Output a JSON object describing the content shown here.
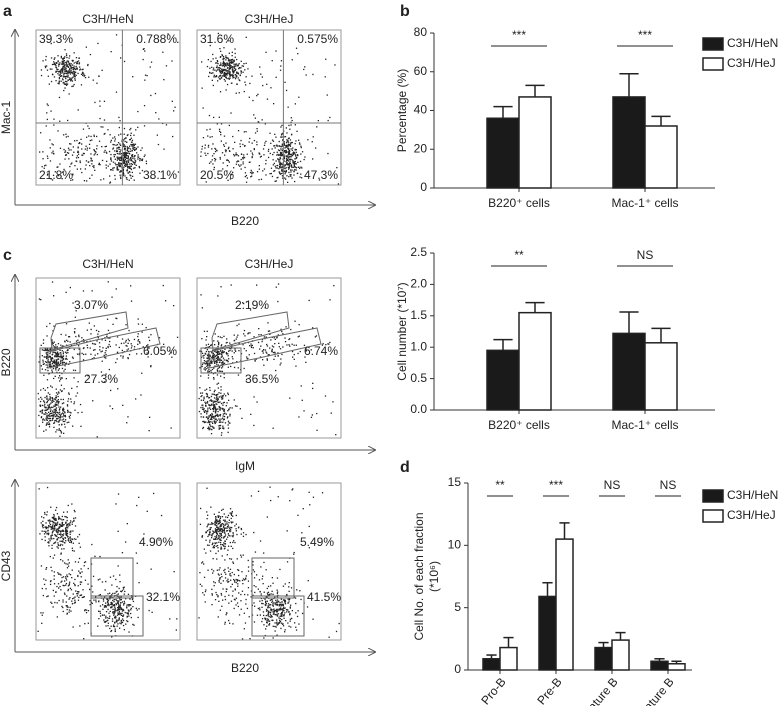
{
  "panel_labels": [
    "a",
    "b",
    "c",
    "d"
  ],
  "flow": {
    "a": {
      "titles": [
        "C3H/HeN",
        "C3H/HeJ"
      ],
      "x_label": "B220",
      "y_label": "Mac-1",
      "quadrants": [
        [
          "39.3%",
          "0.788%",
          "21.8%",
          "38.1%"
        ],
        [
          "31.6%",
          "0.575%",
          "20.5%",
          "47.3%"
        ]
      ]
    },
    "c_top": {
      "titles": [
        "C3H/HeN",
        "C3H/HeJ"
      ],
      "x_label": "IgM",
      "y_label": "B220",
      "gates": [
        [
          "3.07%",
          "6.05%",
          "27.3%"
        ],
        [
          "2.19%",
          "6.74%",
          "36.5%"
        ]
      ]
    },
    "c_bottom": {
      "x_label": "B220",
      "y_label": "CD43",
      "gates": [
        [
          "4.90%",
          "32.1%"
        ],
        [
          "5.49%",
          "41.5%"
        ]
      ]
    }
  },
  "chart_data": [
    {
      "type": "bar",
      "y_label": "Percentage (%)",
      "categories": [
        "B220⁺ cells",
        "Mac-1⁺ cells"
      ],
      "series": [
        {
          "name": "C3H/HeN",
          "color": "#1a1a1a",
          "values": [
            36,
            47
          ],
          "errors": [
            6,
            12
          ]
        },
        {
          "name": "C3H/HeJ",
          "color": "#ffffff",
          "values": [
            47,
            32
          ],
          "errors": [
            6,
            5
          ]
        }
      ],
      "significance": [
        "***",
        "***"
      ],
      "ylim": [
        0,
        80
      ],
      "yticks": [
        0,
        20,
        40,
        60,
        80
      ],
      "legend": "upper right"
    },
    {
      "type": "bar",
      "y_label": "Cell number (*10⁷)",
      "categories": [
        "B220⁺ cells",
        "Mac-1⁺ cells"
      ],
      "series": [
        {
          "name": "C3H/HeN",
          "color": "#1a1a1a",
          "values": [
            0.95,
            1.22
          ],
          "errors": [
            0.17,
            0.34
          ]
        },
        {
          "name": "C3H/HeJ",
          "color": "#ffffff",
          "values": [
            1.55,
            1.07
          ],
          "errors": [
            0.16,
            0.23
          ]
        }
      ],
      "significance": [
        "**",
        "NS"
      ],
      "ylim": [
        0,
        2.5
      ],
      "yticks": [
        {
          "value": 0,
          "label": "0.0"
        },
        {
          "value": 0.5,
          "label": "0.5"
        },
        {
          "value": 1,
          "label": "1.0"
        },
        {
          "value": 1.5,
          "label": "1.5"
        },
        {
          "value": 2,
          "label": "2.0"
        },
        2.5
      ]
    },
    {
      "type": "bar",
      "y_label": "Cell No. of each fraction",
      "y_label_unit": "(*10⁶)",
      "categories": [
        "Pro-B",
        "Pre-B",
        "Immature B",
        "Mature B"
      ],
      "series": [
        {
          "name": "C3H/HeN",
          "color": "#1a1a1a",
          "values": [
            0.9,
            5.9,
            1.8,
            0.7
          ],
          "errors": [
            0.3,
            1.1,
            0.4,
            0.2
          ]
        },
        {
          "name": "C3H/HeJ",
          "color": "#ffffff",
          "values": [
            1.8,
            10.5,
            2.4,
            0.5
          ],
          "errors": [
            0.8,
            1.3,
            0.6,
            0.2
          ]
        }
      ],
      "significance": [
        "**",
        "***",
        "NS",
        "NS"
      ],
      "ylim": [
        0,
        15
      ],
      "yticks": [
        0,
        5,
        10,
        15
      ],
      "legend": "upper right"
    }
  ]
}
